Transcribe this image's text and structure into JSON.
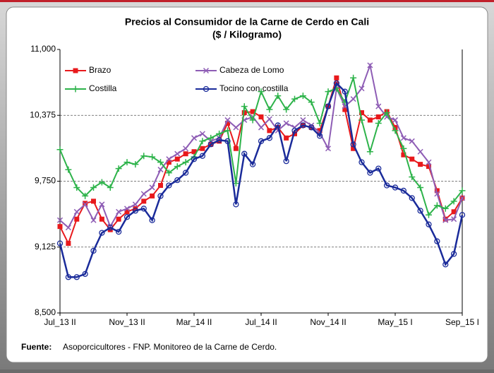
{
  "chart_data": {
    "type": "line",
    "title": "Precios al Consumidor de la Carne de Cerdo en Cali",
    "subtitle": "($ / Kilogramo)",
    "categories": [
      "Jul_13 II",
      null,
      null,
      null,
      null,
      null,
      null,
      null,
      "Nov_13 II",
      null,
      null,
      null,
      null,
      null,
      null,
      null,
      "Mar_14 II",
      null,
      null,
      null,
      null,
      null,
      null,
      null,
      "Jul_14 II",
      null,
      null,
      null,
      null,
      null,
      null,
      null,
      "Nov_14 II",
      null,
      null,
      null,
      null,
      null,
      null,
      null,
      "May_15 I",
      null,
      null,
      null,
      null,
      null,
      null,
      null,
      "Sep_15 I"
    ],
    "series": [
      {
        "name": "Brazo",
        "color": "#e8191c",
        "marker": "square",
        "values": [
          9320,
          9160,
          9390,
          9540,
          9560,
          9390,
          9290,
          9390,
          9460,
          9490,
          9560,
          9610,
          9710,
          9930,
          9960,
          10010,
          10030,
          10060,
          10100,
          10130,
          10300,
          10060,
          10400,
          10410,
          10360,
          10230,
          10260,
          10160,
          10200,
          10280,
          10260,
          10230,
          10460,
          10730,
          10430,
          10060,
          10400,
          10330,
          10360,
          10410,
          10260,
          10000,
          9960,
          9910,
          9890,
          9660,
          9390,
          9460,
          9590
        ]
      },
      {
        "name": "Cabeza de Lomo",
        "color": "#8e5db5",
        "marker": "x",
        "values": [
          9380,
          9310,
          9460,
          9530,
          9380,
          9530,
          9320,
          9460,
          9490,
          9530,
          9630,
          9690,
          9860,
          9960,
          10010,
          10060,
          10160,
          10200,
          10130,
          10160,
          10330,
          10260,
          10330,
          10360,
          10260,
          10340,
          10230,
          10300,
          10260,
          10330,
          10280,
          10210,
          10060,
          10630,
          10460,
          10530,
          10630,
          10850,
          10460,
          10360,
          10330,
          10160,
          10130,
          10030,
          9930,
          9630,
          9380,
          9390,
          9590
        ]
      },
      {
        "name": "Costilla",
        "color": "#2db34a",
        "marker": "plus",
        "values": [
          10050,
          9860,
          9690,
          9610,
          9690,
          9740,
          9690,
          9870,
          9930,
          9910,
          9990,
          9980,
          9930,
          9830,
          9890,
          9930,
          9980,
          10130,
          10160,
          10200,
          10230,
          9730,
          10460,
          10330,
          10600,
          10430,
          10560,
          10430,
          10530,
          10560,
          10500,
          10300,
          10600,
          10630,
          10500,
          10730,
          10330,
          10030,
          10300,
          10400,
          10230,
          10060,
          9790,
          9690,
          9430,
          9520,
          9490,
          9560,
          9660
        ]
      },
      {
        "name": "Tocino con costilla",
        "color": "#1a2b9a",
        "marker": "circle",
        "values": [
          9160,
          8840,
          8840,
          8870,
          9090,
          9260,
          9310,
          9270,
          9410,
          9470,
          9490,
          9380,
          9610,
          9710,
          9760,
          9830,
          9960,
          9990,
          10100,
          10140,
          10130,
          9530,
          10010,
          9910,
          10130,
          10160,
          10280,
          9940,
          10230,
          10280,
          10260,
          10180,
          10460,
          10680,
          10600,
          10100,
          9930,
          9830,
          9870,
          9710,
          9690,
          9660,
          9590,
          9470,
          9340,
          9180,
          8960,
          9060,
          9430
        ]
      }
    ],
    "ylim": [
      8500,
      11000
    ],
    "yticks": [
      {
        "value": 8500,
        "label": "8,500"
      },
      {
        "value": 9125,
        "label": "9,125"
      },
      {
        "value": 9750,
        "label": "9,750"
      },
      {
        "value": 10375,
        "label": "10,375"
      },
      {
        "value": 11000,
        "label": "11,000"
      }
    ],
    "grid": true,
    "legend": "top-left",
    "source_label": "Fuente:",
    "source_text": "Asoporcicultores - FNP. Monitoreo de la Carne de Cerdo."
  }
}
